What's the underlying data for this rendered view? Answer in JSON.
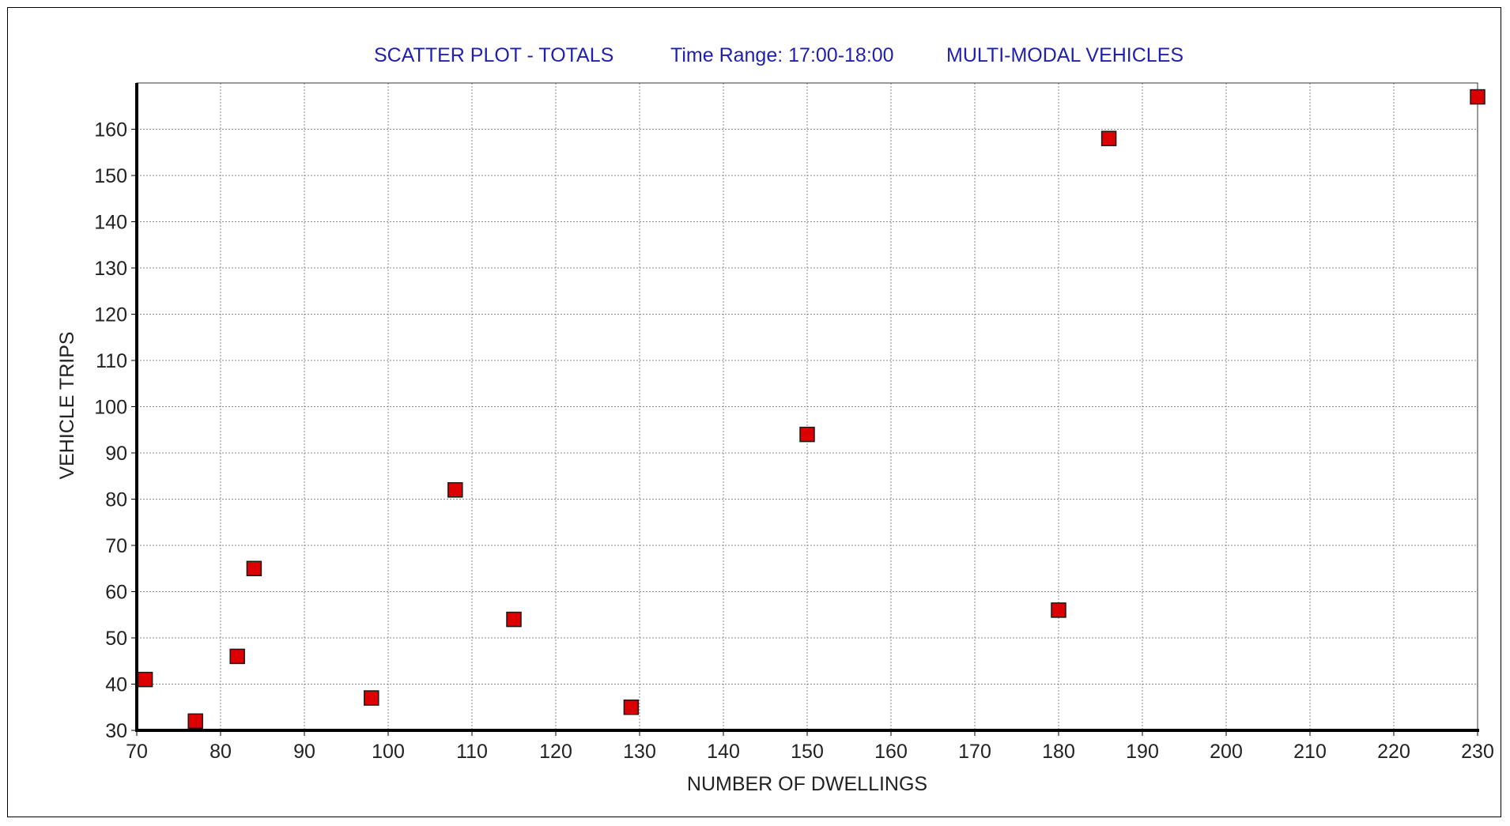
{
  "chart_data": {
    "type": "scatter",
    "title_parts": [
      "SCATTER PLOT -  TOTALS",
      "Time Range:  17:00-18:00",
      "MULTI-MODAL  VEHICLES"
    ],
    "xlabel": "NUMBER OF DWELLINGS",
    "ylabel": "VEHICLE TRIPS",
    "xlim": [
      70,
      230
    ],
    "ylim": [
      30,
      170
    ],
    "xticks": [
      70,
      80,
      90,
      100,
      110,
      120,
      130,
      140,
      150,
      160,
      170,
      180,
      190,
      200,
      210,
      220,
      230
    ],
    "yticks": [
      30,
      40,
      50,
      60,
      70,
      80,
      90,
      100,
      110,
      120,
      130,
      140,
      150,
      160
    ],
    "grid": true,
    "points": [
      {
        "x": 71,
        "y": 41
      },
      {
        "x": 77,
        "y": 32
      },
      {
        "x": 82,
        "y": 46
      },
      {
        "x": 84,
        "y": 65
      },
      {
        "x": 98,
        "y": 37
      },
      {
        "x": 108,
        "y": 82
      },
      {
        "x": 115,
        "y": 54
      },
      {
        "x": 129,
        "y": 35
      },
      {
        "x": 150,
        "y": 94
      },
      {
        "x": 180,
        "y": 56
      },
      {
        "x": 186,
        "y": 158
      },
      {
        "x": 230,
        "y": 167
      }
    ],
    "marker": {
      "shape": "square",
      "color": "#dd0000",
      "edge_color": "#1a1a1a"
    },
    "colors": {
      "title": "#1f1fb0",
      "grid": "#8a8a8a",
      "axis": "#000000"
    }
  }
}
